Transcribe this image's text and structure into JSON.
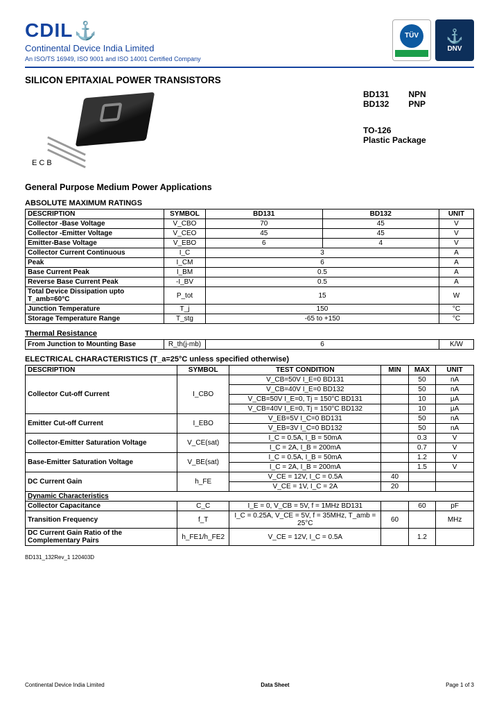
{
  "company": {
    "logo": "CDIL",
    "name": "Continental Device India Limited",
    "cert": "An ISO/TS 16949, ISO 9001 and ISO 14001 Certified Company",
    "tuv": "TÜV",
    "dnv": "DNV"
  },
  "title": "SILICON EPITAXIAL POWER TRANSISTORS",
  "pins": {
    "e": "E",
    "c": "C",
    "b": "B"
  },
  "parts": {
    "p1": "BD131",
    "t1": "NPN",
    "p2": "BD132",
    "t2": "PNP",
    "pkg1": "TO-126",
    "pkg2": "Plastic Package"
  },
  "subtitle": "General Purpose Medium Power Applications",
  "sec1": "ABSOLUTE MAXIMUM RATINGS",
  "hdr": {
    "desc": "DESCRIPTION",
    "sym": "SYMBOL",
    "bd131": "BD131",
    "bd132": "BD132",
    "unit": "UNIT",
    "tc": "TEST CONDITION",
    "min": "MIN",
    "max": "MAX"
  },
  "amr": [
    {
      "d": "Collector -Base Voltage",
      "s": "V_CBO",
      "v1": "70",
      "v2": "45",
      "u": "V"
    },
    {
      "d": "Collector -Emitter Voltage",
      "s": "V_CEO",
      "v1": "45",
      "v2": "45",
      "u": "V"
    },
    {
      "d": "Emitter-Base Voltage",
      "s": "V_EBO",
      "v1": "6",
      "v2": "4",
      "u": "V"
    },
    {
      "d": "Collector Current Continuous",
      "s": "I_C",
      "v": "3",
      "u": "A"
    },
    {
      "d": "                              Peak",
      "s": "I_CM",
      "v": "6",
      "u": "A"
    },
    {
      "d": "Base Current              Peak",
      "s": "I_BM",
      "v": "0.5",
      "u": "A"
    },
    {
      "d": "Reverse Base Current  Peak",
      "s": "-I_BV",
      "v": "0.5",
      "u": "A"
    },
    {
      "d": "Total Device Dissipation upto T_amb=60°C",
      "s": "P_tot",
      "v": "15",
      "u": "W"
    },
    {
      "d": "Junction Temperature",
      "s": "T_j",
      "v": "150",
      "u": "°C"
    },
    {
      "d": "Storage Temperature Range",
      "s": "T_stg",
      "v": "-65 to +150",
      "u": "°C"
    }
  ],
  "sec2": "Thermal Resistance",
  "thermal": {
    "d": "From Junction to Mounting Base",
    "s": "R_th(j-mb)",
    "v": "6",
    "u": "K/W"
  },
  "sec3": "ELECTRICAL CHARACTERISTICS (T_a=25°C unless specified otherwise)",
  "ec": {
    "cco": {
      "d": "Collector Cut-off Current",
      "s": "I_CBO",
      "r": [
        {
          "tc": "V_CB=50V I_E=0      BD131",
          "max": "50",
          "u": "nA"
        },
        {
          "tc": "V_CB=40V I_E=0      BD132",
          "max": "50",
          "u": "nA"
        },
        {
          "tc": "V_CB=50V I_E=0, Tj = 150°C   BD131",
          "max": "10",
          "u": "μA"
        },
        {
          "tc": "V_CB=40V I_E=0, Tj = 150°C   BD132",
          "max": "10",
          "u": "μA"
        }
      ]
    },
    "eco": {
      "d": "Emitter Cut-off Current",
      "s": "I_EBO",
      "r": [
        {
          "tc": "V_EB=5V I_C=0          BD131",
          "max": "50",
          "u": "nA"
        },
        {
          "tc": "V_EB=3V I_C=0          BD132",
          "max": "50",
          "u": "nA"
        }
      ]
    },
    "vces": {
      "d": "Collector-Emitter Saturation Voltage",
      "s": "V_CE(sat)",
      "r": [
        {
          "tc": "I_C = 0.5A, I_B = 50mA",
          "max": "0.3",
          "u": "V"
        },
        {
          "tc": "I_C = 2A, I_B = 200mA",
          "max": "0.7",
          "u": "V"
        }
      ]
    },
    "vbes": {
      "d": "Base-Emitter Saturation Voltage",
      "s": "V_BE(sat)",
      "r": [
        {
          "tc": "I_C = 0.5A, I_B = 50mA",
          "max": "1.2",
          "u": "V"
        },
        {
          "tc": "I_C = 2A, I_B = 200mA",
          "max": "1.5",
          "u": "V"
        }
      ]
    },
    "hfe": {
      "d": "DC Current Gain",
      "s": "h_FE",
      "r": [
        {
          "tc": "V_CE = 12V, I_C = 0.5A",
          "min": "40"
        },
        {
          "tc": "V_CE = 1V, I_C = 2A",
          "min": "20"
        }
      ]
    }
  },
  "sec4": "Dynamic Characteristics",
  "dc": {
    "cc": {
      "d": "Collector Capacitance",
      "s": "C_C",
      "tc": "I_E = 0, V_CB = 5V, f = 1MHz       BD131",
      "max": "60",
      "u": "pF"
    },
    "ft": {
      "d": "Transition Frequency",
      "s": "f_T",
      "tc": "I_C = 0.25A, V_CE = 5V, f = 35MHz, T_amb = 25°C",
      "min": "60",
      "u": "MHz"
    },
    "cgr": {
      "d": "DC Current Gain Ratio of the Complementary Pairs",
      "s": "h_FE1/h_FE2",
      "tc": "V_CE = 12V, I_C = 0.5A",
      "max": "1.2"
    }
  },
  "docid": "BD131_132Rev_1 120403D",
  "footer": {
    "l": "Continental Device India Limited",
    "c": "Data Sheet",
    "r": "Page 1 of 3"
  }
}
